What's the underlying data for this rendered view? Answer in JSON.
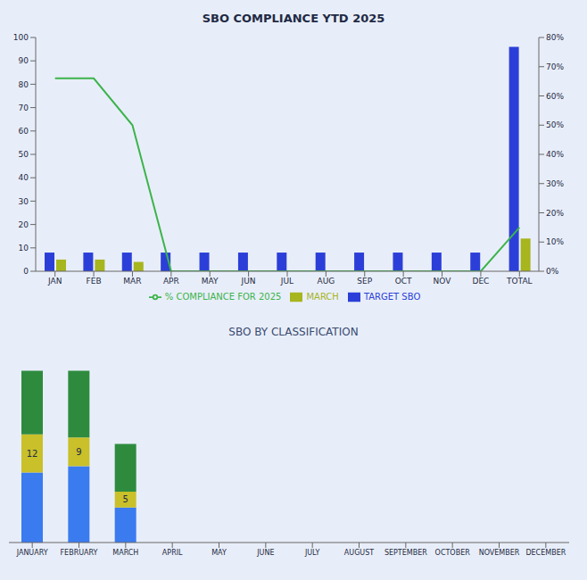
{
  "chart_data": [
    {
      "type": "bar",
      "title": "SBO COMPLIANCE YTD 2025",
      "categories": [
        "JAN",
        "FEB",
        "MAR",
        "APR",
        "MAY",
        "JUN",
        "JUL",
        "AUG",
        "SEP",
        "OCT",
        "NOV",
        "DEC",
        "TOTAL"
      ],
      "series": [
        {
          "name": "TARGET SBO",
          "color": "#2b3fd8",
          "values": [
            8,
            8,
            8,
            8,
            8,
            8,
            8,
            8,
            8,
            8,
            8,
            8,
            96
          ]
        },
        {
          "name": "MARCH",
          "color": "#a7b51e",
          "values": [
            5,
            5,
            4,
            null,
            null,
            null,
            null,
            null,
            null,
            null,
            null,
            null,
            14
          ]
        },
        {
          "name": "% COMPLIANCE FOR 2025",
          "type": "line",
          "axis": "y2",
          "color": "#3cb44b",
          "values": [
            66,
            66,
            50,
            0,
            0,
            0,
            0,
            0,
            0,
            0,
            0,
            0,
            15
          ]
        }
      ],
      "ylim": [
        0,
        100
      ],
      "yticks": [
        0,
        10,
        20,
        30,
        40,
        50,
        60,
        70,
        80,
        90,
        100
      ],
      "y2lim": [
        0,
        80
      ],
      "y2ticks": [
        {
          "value": 0,
          "label": "0%"
        },
        {
          "value": 10,
          "label": "10%"
        },
        {
          "value": 20,
          "label": "20%"
        },
        {
          "value": 30,
          "label": "30%"
        },
        {
          "value": 40,
          "label": "40%"
        },
        {
          "value": 50,
          "label": "50%"
        },
        {
          "value": 60,
          "label": "60%"
        },
        {
          "value": 70,
          "label": "70%"
        },
        {
          "value": 80,
          "label": "80%"
        }
      ],
      "legend": "bottom"
    },
    {
      "type": "bar",
      "title": "SBO BY CLASSIFICATION",
      "stacked": true,
      "tick_labels": "x",
      "categories": [
        "JANUARY",
        "FEBRUARY",
        "MARCH",
        "APRIL",
        "MAY",
        "JUNE",
        "JULY",
        "AUGUST",
        "SEPTEMBER",
        "OCTOBER",
        "NOVEMBER",
        "DECEMBER"
      ],
      "series": [
        {
          "color": "#3a7bf0",
          "values": [
            22,
            24,
            11,
            null,
            null,
            null,
            null,
            null,
            null,
            null,
            null,
            null
          ]
        },
        {
          "color": "#c9c02a",
          "data_labels": true,
          "values": [
            12,
            9,
            5,
            null,
            null,
            null,
            null,
            null,
            null,
            null,
            null,
            null
          ]
        },
        {
          "color": "#2e8b3e",
          "values": [
            20,
            21,
            15,
            null,
            null,
            null,
            null,
            null,
            null,
            null,
            null,
            null
          ]
        }
      ]
    }
  ]
}
